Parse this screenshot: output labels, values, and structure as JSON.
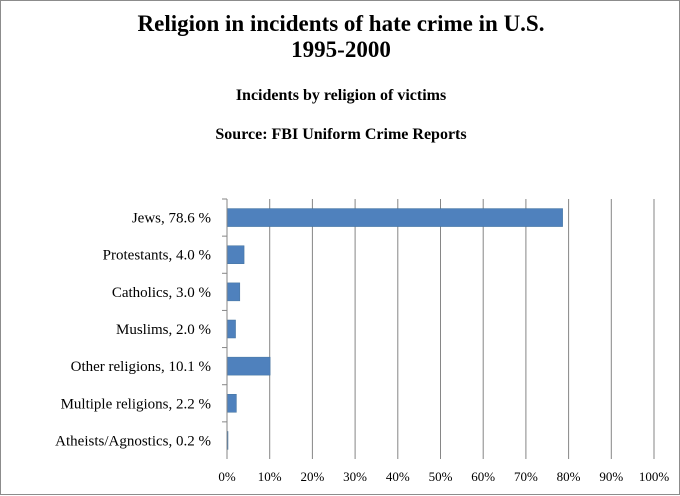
{
  "chart_data": {
    "type": "bar",
    "orientation": "horizontal",
    "title": "Religion in incidents of hate crime in U.S.",
    "title_line2": "1995-2000",
    "subtitle": "Incidents by religion of victims",
    "source": "Source: FBI Uniform Crime Reports",
    "categories": [
      "Jews, 78.6 %",
      "Protestants, 4.0 %",
      "Catholics, 3.0 %",
      "Muslims, 2.0 %",
      "Other religions, 10.1 %",
      "Multiple religions, 2.2 %",
      "Atheists/Agnostics, 0.2 %"
    ],
    "values": [
      78.6,
      4.0,
      3.0,
      2.0,
      10.1,
      2.2,
      0.2
    ],
    "xlim": [
      0,
      100
    ],
    "ticks": [
      "0%",
      "10%",
      "20%",
      "30%",
      "40%",
      "50%",
      "60%",
      "70%",
      "80%",
      "90%",
      "100%"
    ],
    "grid": true,
    "legend": "none",
    "bar_color": "#4f81bd"
  }
}
